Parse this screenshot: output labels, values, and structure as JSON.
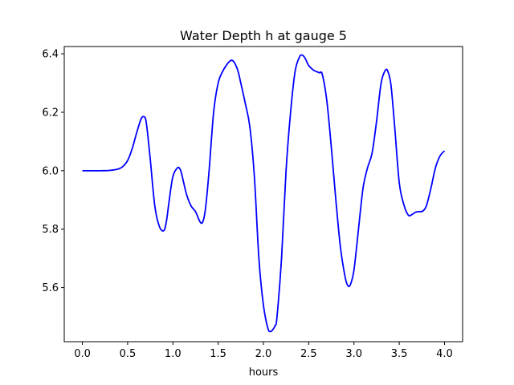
{
  "chart_data": {
    "type": "line",
    "title": "Water Depth h at gauge 5",
    "xlabel": "hours",
    "ylabel": "",
    "xlim": [
      -0.2,
      4.2
    ],
    "ylim": [
      5.415,
      6.425
    ],
    "xticks": [
      "0.0",
      "0.5",
      "1.0",
      "1.5",
      "2.0",
      "2.5",
      "3.0",
      "3.5",
      "4.0"
    ],
    "yticks": [
      "5.6",
      "5.8",
      "6.0",
      "6.2",
      "6.4"
    ],
    "grid": false,
    "series": [
      {
        "color": "#0000ff",
        "x": [
          0.0,
          0.2,
          0.3,
          0.4,
          0.45,
          0.5,
          0.55,
          0.6,
          0.65,
          0.68,
          0.7,
          0.72,
          0.75,
          0.8,
          0.85,
          0.9,
          0.93,
          0.96,
          1.0,
          1.05,
          1.08,
          1.1,
          1.15,
          1.2,
          1.25,
          1.3,
          1.33,
          1.36,
          1.4,
          1.45,
          1.5,
          1.55,
          1.6,
          1.63,
          1.65,
          1.68,
          1.72,
          1.75,
          1.8,
          1.85,
          1.9,
          1.95,
          2.0,
          2.05,
          2.08,
          2.1,
          2.13,
          2.15,
          2.2,
          2.25,
          2.3,
          2.35,
          2.4,
          2.43,
          2.46,
          2.5,
          2.55,
          2.58,
          2.62,
          2.65,
          2.7,
          2.75,
          2.8,
          2.85,
          2.9,
          2.93,
          2.96,
          3.0,
          3.05,
          3.1,
          3.15,
          3.2,
          3.25,
          3.3,
          3.35,
          3.38,
          3.41,
          3.45,
          3.5,
          3.55,
          3.6,
          3.64,
          3.68,
          3.72,
          3.76,
          3.8,
          3.85,
          3.9,
          3.95,
          4.0
        ],
        "y": [
          6.0,
          6.0,
          6.001,
          6.006,
          6.015,
          6.035,
          6.075,
          6.13,
          6.178,
          6.185,
          6.175,
          6.13,
          6.04,
          5.88,
          5.81,
          5.795,
          5.83,
          5.9,
          5.98,
          6.01,
          6.005,
          5.985,
          5.92,
          5.88,
          5.86,
          5.825,
          5.825,
          5.87,
          6.0,
          6.2,
          6.3,
          6.34,
          6.365,
          6.375,
          6.378,
          6.37,
          6.34,
          6.3,
          6.23,
          6.15,
          5.98,
          5.7,
          5.54,
          5.46,
          5.45,
          5.455,
          5.47,
          5.5,
          5.7,
          6.0,
          6.2,
          6.34,
          6.39,
          6.395,
          6.385,
          6.36,
          6.345,
          6.34,
          6.335,
          6.33,
          6.24,
          6.08,
          5.9,
          5.74,
          5.64,
          5.608,
          5.61,
          5.66,
          5.8,
          5.94,
          6.01,
          6.06,
          6.17,
          6.3,
          6.345,
          6.335,
          6.29,
          6.15,
          5.96,
          5.885,
          5.848,
          5.85,
          5.858,
          5.86,
          5.862,
          5.88,
          5.94,
          6.01,
          6.05,
          6.068
        ]
      }
    ]
  }
}
